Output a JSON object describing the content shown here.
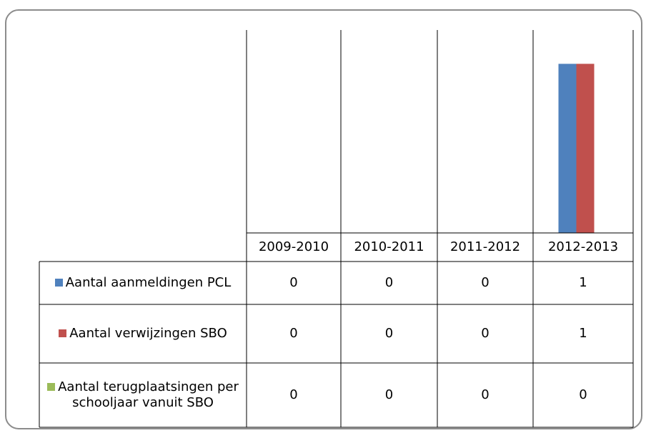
{
  "chart_data": {
    "type": "bar",
    "categories": [
      "2009-2010",
      "2010-2011",
      "2011-2012",
      "2012-2013"
    ],
    "series": [
      {
        "name": "Aantal aanmeldingen PCL",
        "color": "#4f81bd",
        "values": [
          0,
          0,
          0,
          1
        ]
      },
      {
        "name": "Aantal verwijzingen SBO",
        "color": "#c0504d",
        "values": [
          0,
          0,
          0,
          1
        ]
      },
      {
        "name": "Aantal terugplaatsingen per schooljaar vanuit SBO",
        "color": "#9bbb59",
        "values": [
          0,
          0,
          0,
          0
        ]
      }
    ],
    "ylim": [
      0,
      1.2
    ]
  }
}
